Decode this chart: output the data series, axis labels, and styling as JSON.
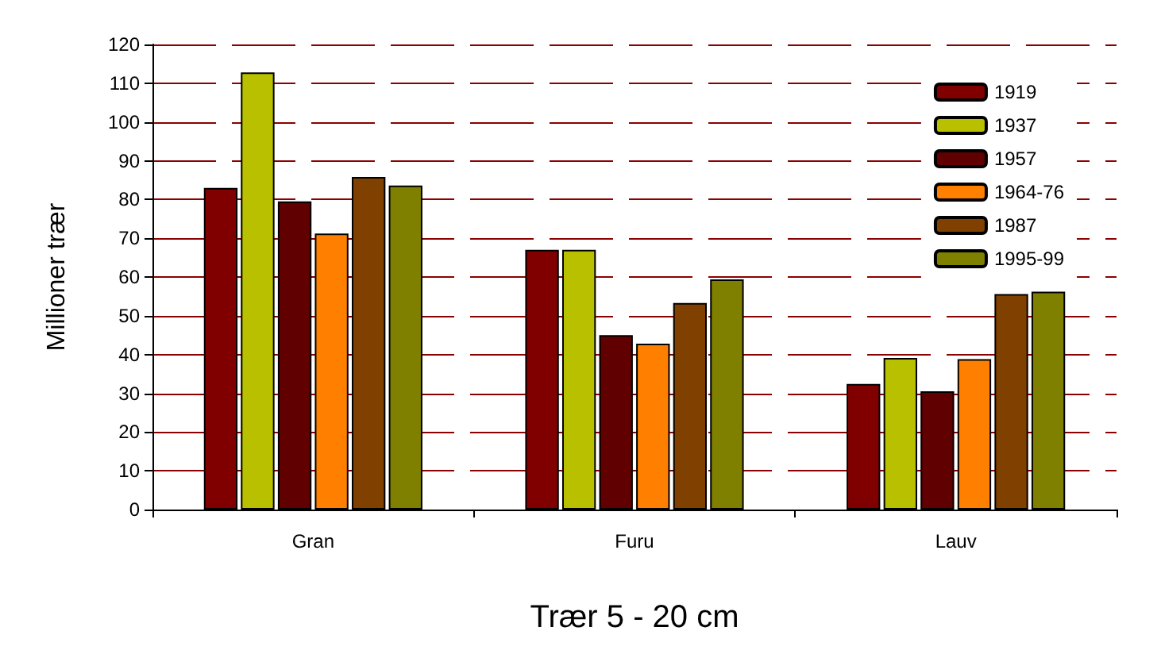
{
  "chart_data": {
    "type": "bar",
    "xlabel": "Trær 5 - 20 cm",
    "ylabel": "Millioner trær",
    "categories": [
      "Gran",
      "Furu",
      "Lauv"
    ],
    "series": [
      {
        "name": "1919",
        "color": "#800000",
        "values": [
          83,
          67,
          32.4
        ]
      },
      {
        "name": "1937",
        "color": "#b8c000",
        "values": [
          112.8,
          67,
          39.1
        ]
      },
      {
        "name": "1957",
        "color": "#600000",
        "values": [
          79.5,
          45,
          30.5
        ]
      },
      {
        "name": "1964-76",
        "color": "#ff8000",
        "values": [
          71.2,
          42.8,
          38.8
        ]
      },
      {
        "name": "1987",
        "color": "#804000",
        "values": [
          85.8,
          53.3,
          55.6
        ]
      },
      {
        "name": "1995-99",
        "color": "#808000",
        "values": [
          83.6,
          59.4,
          56.2
        ]
      }
    ],
    "ylim": [
      0,
      120
    ],
    "yticks": [
      0,
      10,
      20,
      30,
      40,
      50,
      60,
      70,
      80,
      90,
      100,
      110,
      120
    ],
    "grid": "y",
    "legend": "top right"
  }
}
